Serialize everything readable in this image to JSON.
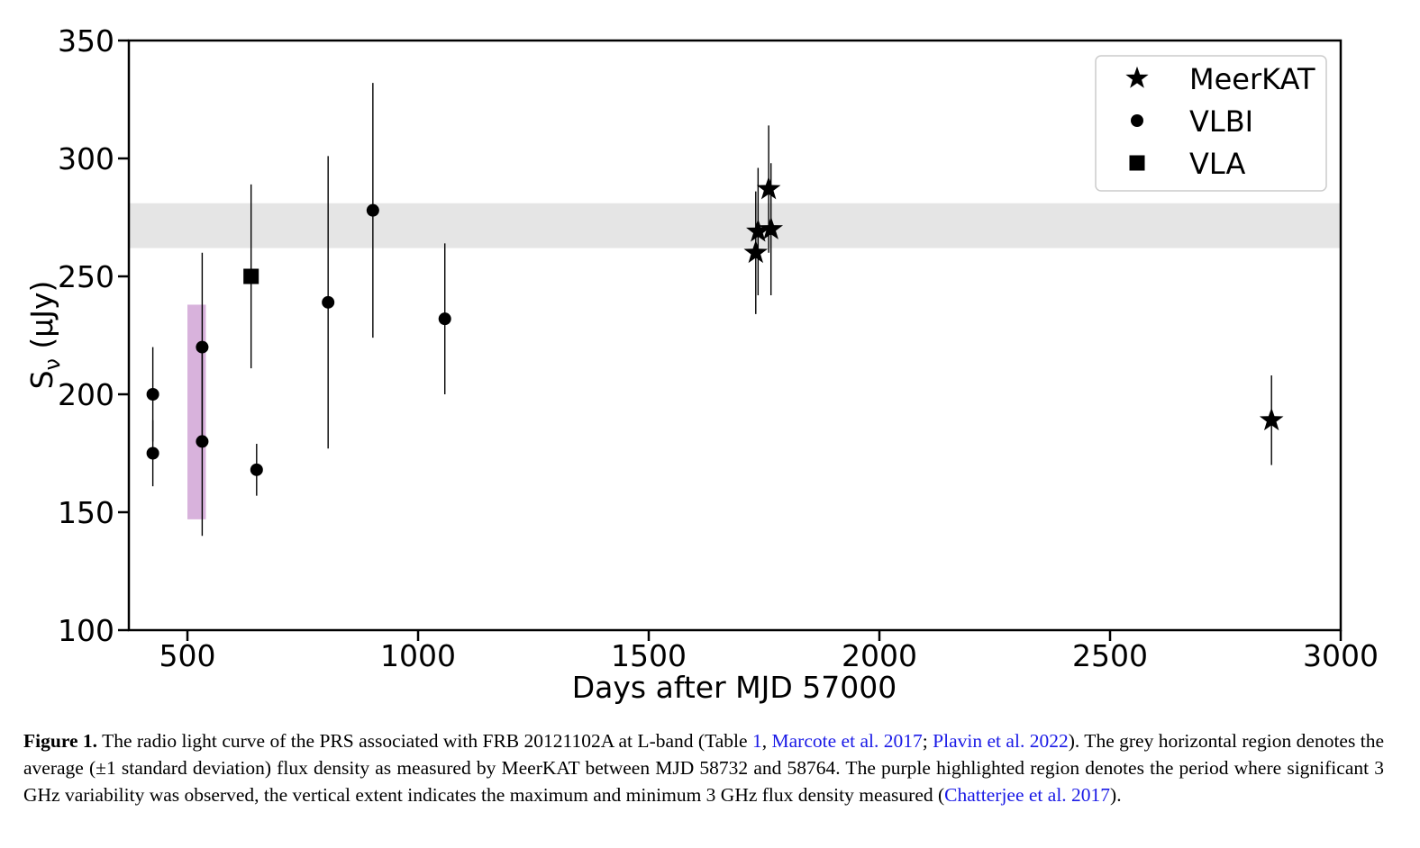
{
  "chart_data": {
    "type": "scatter",
    "xlabel": "Days after MJD 57000",
    "ylabel_main": "S",
    "ylabel_sub": "ν",
    "ylabel_rest": " (μJy)",
    "xlim": [
      373,
      3000
    ],
    "ylim": [
      100,
      350
    ],
    "xticks": [
      500,
      1000,
      1500,
      2000,
      2500,
      3000
    ],
    "yticks": [
      100,
      150,
      200,
      250,
      300,
      350
    ],
    "legend_position": "upper-right",
    "grid": false,
    "bands": [
      {
        "type": "horizontal",
        "y": [
          262,
          281
        ],
        "color": "#e5e5e5"
      },
      {
        "type": "vertical",
        "x": [
          500,
          540
        ],
        "y": [
          147,
          238
        ],
        "color": "#d8b2dc"
      }
    ],
    "series": [
      {
        "name": "MeerKAT",
        "marker": "star",
        "points": [
          {
            "x": 1732,
            "y": 260,
            "yerr": [
              234,
              286
            ]
          },
          {
            "x": 1737,
            "y": 269,
            "yerr": [
              242,
              296
            ]
          },
          {
            "x": 1760,
            "y": 287,
            "yerr": [
              260,
              314
            ]
          },
          {
            "x": 1765,
            "y": 270,
            "yerr": [
              242,
              298
            ]
          },
          {
            "x": 2850,
            "y": 189,
            "yerr": [
              170,
              208
            ]
          }
        ]
      },
      {
        "name": "VLBI",
        "marker": "circle",
        "points": [
          {
            "x": 425,
            "y": 200,
            "yerr": [
              180,
              220
            ]
          },
          {
            "x": 425,
            "y": 175,
            "yerr": [
              161,
              189
            ]
          },
          {
            "x": 532,
            "y": 220,
            "yerr": [
              180,
              260
            ]
          },
          {
            "x": 532,
            "y": 180,
            "yerr": [
              140,
              220
            ]
          },
          {
            "x": 650,
            "y": 168,
            "yerr": [
              157,
              179
            ]
          },
          {
            "x": 805,
            "y": 239,
            "yerr": [
              177,
              301
            ]
          },
          {
            "x": 902,
            "y": 278,
            "yerr": [
              224,
              332
            ]
          },
          {
            "x": 1058,
            "y": 232,
            "yerr": [
              200,
              264
            ]
          }
        ]
      },
      {
        "name": "VLA",
        "marker": "square",
        "points": [
          {
            "x": 638,
            "y": 250,
            "yerr": [
              211,
              289
            ]
          }
        ]
      }
    ]
  },
  "caption": {
    "label": "Figure 1.",
    "text1": " The radio light curve of the PRS associated with FRB 20121102A at L-band (Table ",
    "ref_table": "1",
    "text2": ",  ",
    "ref1": "Marcote et al. 2017",
    "text3": "; ",
    "ref2": "Plavin et al. 2022",
    "text4": "). The grey horizontal region denotes the average (±1 standard deviation) flux density as measured by MeerKAT between MJD 58732 and 58764. The purple highlighted region denotes the period where significant 3 GHz variability was observed, the vertical extent indicates the maximum and minimum 3 GHz flux density measured (",
    "ref3": "Chatterjee et al. 2017",
    "text5": ")."
  }
}
